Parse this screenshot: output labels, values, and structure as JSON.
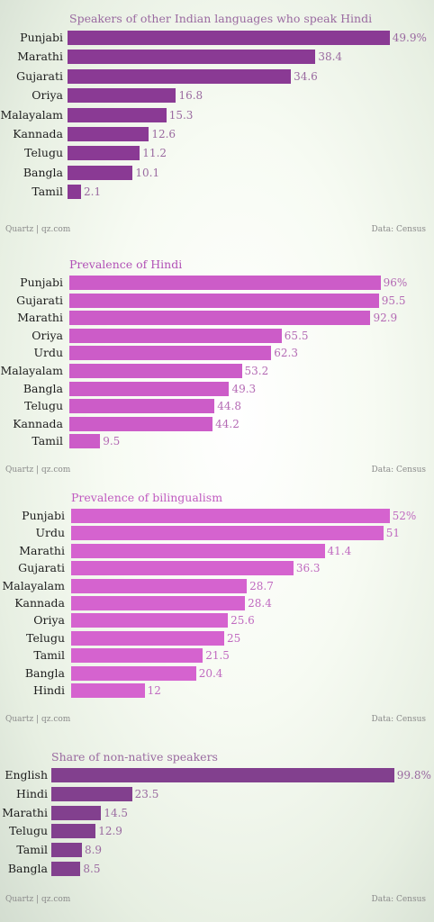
{
  "credit": "Quartz | qz.com",
  "source": "Data: Census",
  "chart_data": [
    {
      "type": "bar",
      "title": "Speakers of other Indian languages who speak Hindi",
      "categories": [
        "Punjabi",
        "Marathi",
        "Gujarati",
        "Oriya",
        "Malayalam",
        "Kannada",
        "Telugu",
        "Bangla",
        "Tamil"
      ],
      "values": [
        49.9,
        38.4,
        34.6,
        16.8,
        15.3,
        12.6,
        11.2,
        10.1,
        2.1
      ],
      "value_labels": [
        "49.9%",
        "38.4",
        "34.6",
        "16.8",
        "15.3",
        "12.6",
        "11.2",
        "10.1",
        "2.1"
      ],
      "xlim": [
        0,
        53
      ],
      "bar_color": "#8a3a94",
      "title_color": "#9a6aa0",
      "label_color": "#9a6aa0"
    },
    {
      "type": "bar",
      "title": "Prevalence of Hindi",
      "categories": [
        "Punjabi",
        "Gujarati",
        "Marathi",
        "Oriya",
        "Urdu",
        "Malayalam",
        "Bangla",
        "Telugu",
        "Kannada",
        "Tamil"
      ],
      "values": [
        96,
        95.5,
        92.9,
        65.5,
        62.3,
        53.2,
        49.3,
        44.8,
        44.2,
        9.5
      ],
      "value_labels": [
        "96%",
        "95.5",
        "92.9",
        "65.5",
        "62.3",
        "53.2",
        "49.3",
        "44.8",
        "44.2",
        "9.5"
      ],
      "xlim": [
        0,
        100
      ],
      "bar_color": "#cc5cc8",
      "title_color": "#b150b6",
      "label_color": "#b46ab4"
    },
    {
      "type": "bar",
      "title": "Prevalence of bilingualism",
      "categories": [
        "Punjabi",
        "Urdu",
        "Marathi",
        "Gujarati",
        "Malayalam",
        "Kannada",
        "Oriya",
        "Telugu",
        "Tamil",
        "Bangla",
        "Hindi"
      ],
      "values": [
        52,
        51,
        41.4,
        36.3,
        28.7,
        28.4,
        25.6,
        25,
        21.5,
        20.4,
        12
      ],
      "value_labels": [
        "52%",
        "51",
        "41.4",
        "36.3",
        "28.7",
        "28.4",
        "25.6",
        "25",
        "21.5",
        "20.4",
        "12"
      ],
      "xlim": [
        0,
        55
      ],
      "bar_color": "#d563cf",
      "title_color": "#c05ac0",
      "label_color": "#c06ac0"
    },
    {
      "type": "bar",
      "title": "Share of non-native speakers",
      "categories": [
        "English",
        "Hindi",
        "Marathi",
        "Telugu",
        "Tamil",
        "Bangla"
      ],
      "values": [
        99.8,
        23.5,
        14.5,
        12.9,
        8.9,
        8.5
      ],
      "value_labels": [
        "99.8%",
        "23.5",
        "14.5",
        "12.9",
        "8.9",
        "8.5"
      ],
      "xlim": [
        0,
        103
      ],
      "bar_color": "#82408e",
      "title_color": "#9a6aa0",
      "label_color": "#9a6aa0"
    }
  ]
}
